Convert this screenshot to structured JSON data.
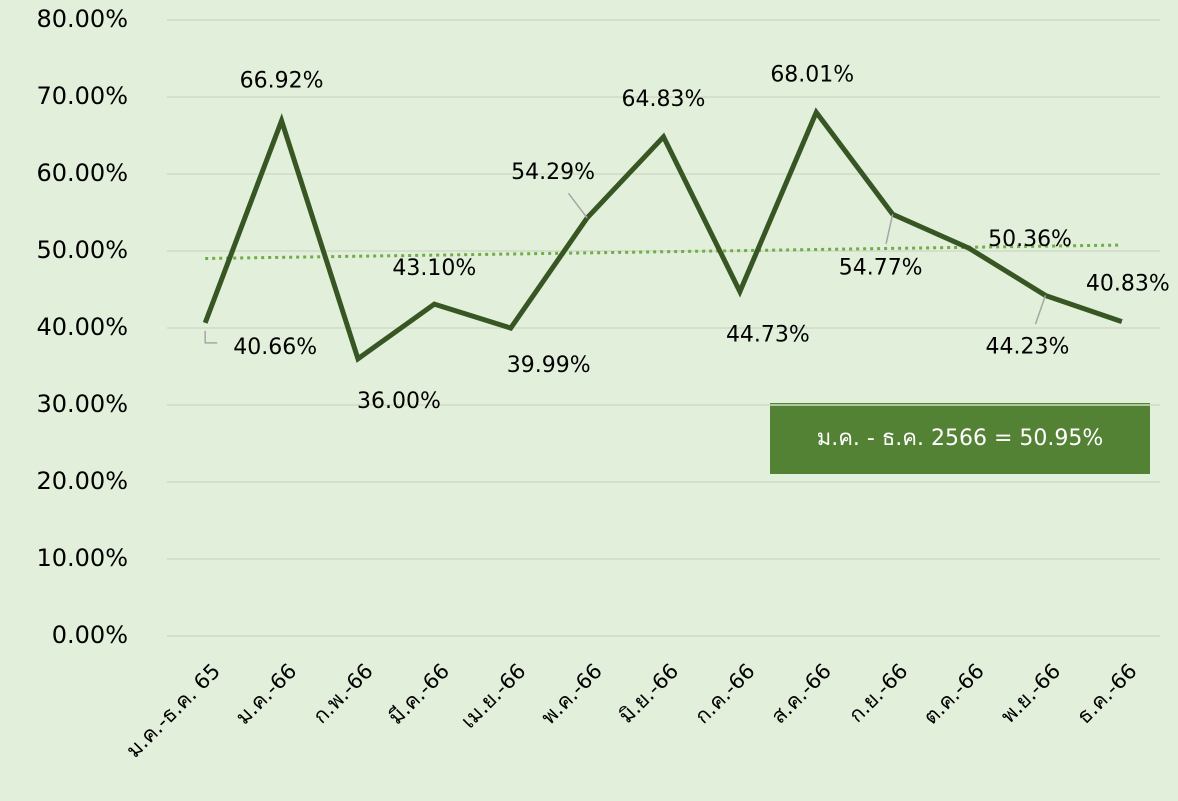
{
  "chart_data": {
    "type": "line",
    "categories": [
      "ม.ค.-ธ.ค. 65",
      "ม.ค.-66",
      "ก.พ.-66",
      "มี.ค.-66",
      "เม.ย.-66",
      "พ.ค.-66",
      "มิ.ย.-66",
      "ก.ค.-66",
      "ส.ค.-66",
      "ก.ย.-66",
      "ต.ค.-66",
      "พ.ย.-66",
      "ธ.ค.-66"
    ],
    "values": [
      40.66,
      66.92,
      36.0,
      43.1,
      39.99,
      54.29,
      64.83,
      44.73,
      68.01,
      54.77,
      50.36,
      44.23,
      40.83
    ],
    "value_labels": [
      "40.66%",
      "66.92%",
      "36.00%",
      "43.10%",
      "39.99%",
      "54.29%",
      "64.83%",
      "44.73%",
      "68.01%",
      "54.77%",
      "50.36%",
      "44.23%",
      "40.83%"
    ],
    "color": "#375623",
    "trendline": true,
    "trendline_color": "#70ad47",
    "ylim": [
      0,
      80
    ],
    "yticks": [
      {
        "value": 0,
        "label": "0.00%"
      },
      {
        "value": 10,
        "label": "10.00%"
      },
      {
        "value": 20,
        "label": "20.00%"
      },
      {
        "value": 30,
        "label": "30.00%"
      },
      {
        "value": 40,
        "label": "40.00%"
      },
      {
        "value": 50,
        "label": "50.00%"
      },
      {
        "value": 60,
        "label": "60.00%"
      },
      {
        "value": 70,
        "label": "70.00%"
      },
      {
        "value": 80,
        "label": "80.00%"
      }
    ],
    "grid": true,
    "annotation": "ม.ค. - ธ.ค. 2566 = 50.95%",
    "annotation_color": "#548235"
  }
}
